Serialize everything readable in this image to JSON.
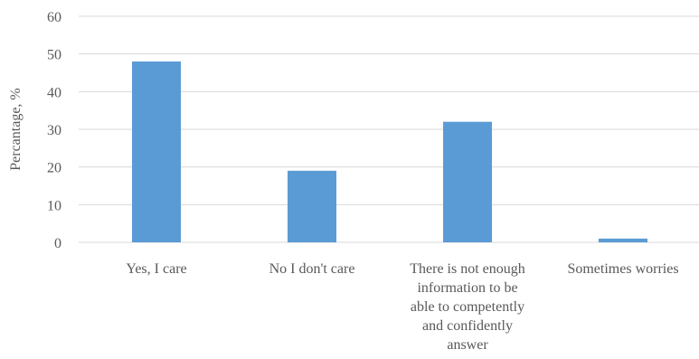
{
  "chart_data": {
    "type": "bar",
    "categories": [
      [
        "Yes, I care"
      ],
      [
        "No I don't care"
      ],
      [
        "There is not enough",
        "information to be",
        "able to competently",
        "and confidently",
        "answer"
      ],
      [
        "Sometimes worries"
      ]
    ],
    "category_keys": [
      "yes-i-care",
      "no-i-dont-care",
      "not-enough-information",
      "sometimes-worries"
    ],
    "values": [
      48,
      19,
      32,
      1
    ],
    "ylabel": "Percantage, %",
    "ylim": [
      0,
      60
    ],
    "yticks": [
      0,
      10,
      20,
      30,
      40,
      50,
      60
    ],
    "grid": true,
    "colors": {
      "bar": "#5b9bd5",
      "grid": "#d9d9d9",
      "text": "#595959"
    }
  }
}
